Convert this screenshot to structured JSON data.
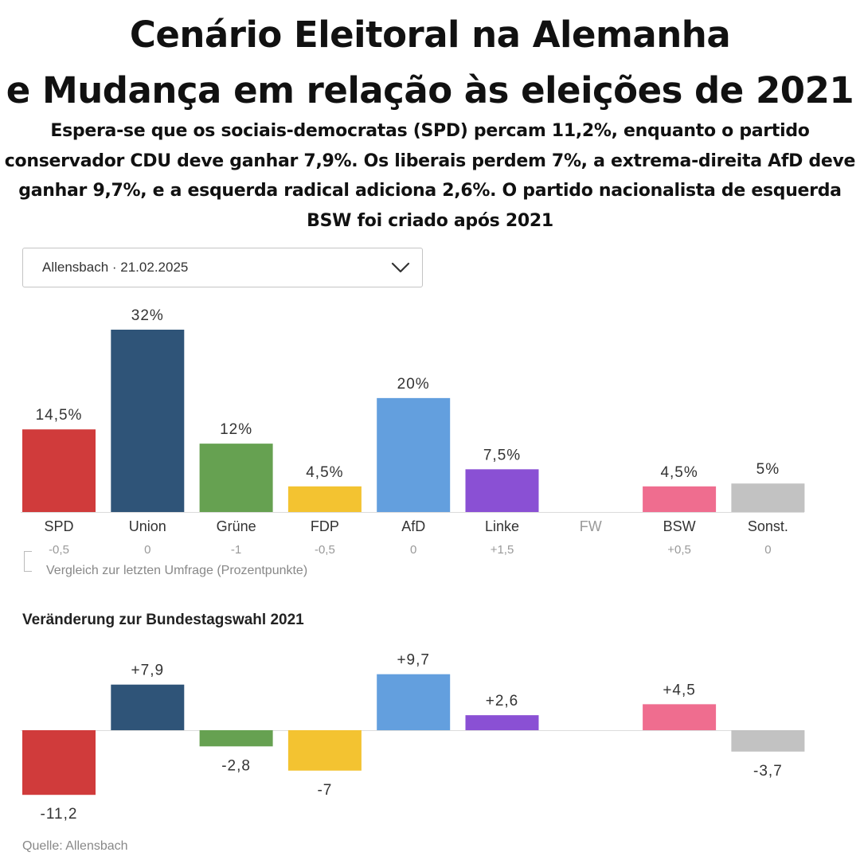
{
  "header": {
    "title_line1": "Cenário Eleitoral na Alemanha",
    "title_line2": "e Mudança em relação às eleições de 2021",
    "subtitle": "Espera-se que os sociais-democratas (SPD) percam 11,2%, enquanto o partido conservador CDU deve ganhar 7,9%. Os liberais perdem 7%, a extrema-direita AfD deve ganhar 9,7%, e a esquerda radical adiciona 2,6%. O partido nacionalista de esquerda BSW foi criado após 2021"
  },
  "selector": {
    "label": "Allensbach · 21.02.2025",
    "icon": "chevron-down-icon"
  },
  "comparison_note": "Vergleich zur letzten Umfrage (Prozentpunkte)",
  "section2_heading": "Veränderung zur Bundestagswahl 2021",
  "source": "Quelle: Allensbach",
  "colors": {
    "SPD": "#d03b3b",
    "Union": "#2f5478",
    "Grüne": "#66a151",
    "FDP": "#f3c331",
    "AfD": "#639fde",
    "Linke": "#8a50d4",
    "FW": "#c9c9c9",
    "BSW": "#ef6d8f",
    "Sonst.": "#c2c2c2"
  },
  "chart_data": [
    {
      "type": "bar",
      "categories": [
        "SPD",
        "Union",
        "Grüne",
        "FDP",
        "AfD",
        "Linke",
        "FW",
        "BSW",
        "Sonst."
      ],
      "values": [
        14.5,
        32,
        12,
        4.5,
        20,
        7.5,
        null,
        4.5,
        5
      ],
      "data_labels": [
        "14,5%",
        "32%",
        "12%",
        "4,5%",
        "20%",
        "7,5%",
        "",
        "4,5%",
        "5%"
      ],
      "change_labels": [
        "-0,5",
        "0",
        "-1",
        "-0,5",
        "0",
        "+1,5",
        "",
        "+0,5",
        "0"
      ],
      "ylim": [
        0,
        32
      ],
      "grid": false
    },
    {
      "type": "bar",
      "categories": [
        "SPD",
        "Union",
        "Grüne",
        "FDP",
        "AfD",
        "Linke",
        "FW",
        "BSW",
        "Sonst."
      ],
      "values": [
        -11.2,
        7.9,
        -2.8,
        -7,
        9.7,
        2.6,
        null,
        4.5,
        -3.7
      ],
      "data_labels": [
        "-11,2",
        "+7,9",
        "-2,8",
        "-7",
        "+9,7",
        "+2,6",
        "",
        "+4,5",
        "-3,7"
      ],
      "ylim": [
        -11.2,
        9.7
      ],
      "grid": false
    }
  ]
}
